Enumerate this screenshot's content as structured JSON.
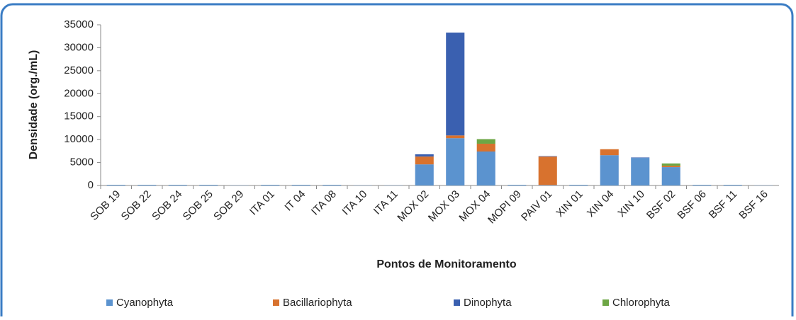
{
  "chart_data": {
    "type": "stacked_bar",
    "x_label": "Pontos de Monitoramento",
    "y_label": "Densidade (org./mL)",
    "categories": [
      "SOB 19",
      "SOB 22",
      "SOB 24",
      "SOB 25",
      "SOB 29",
      "ITA 01",
      "IT 04",
      "ITA 08",
      "ITA 10",
      "ITA 11",
      "MOX 02",
      "MOX 03",
      "MOX 04",
      "MOPI 09",
      "PAIV 01",
      "XIN 01",
      "XIN 04",
      "XIN 10",
      "BSF 02",
      "BSF 06",
      "BSF 11",
      "BSF 16"
    ],
    "series": [
      {
        "name": "Cyanophyta",
        "color": "#5b93cf",
        "values": [
          150,
          150,
          150,
          150,
          50,
          150,
          150,
          150,
          50,
          50,
          4600,
          10300,
          7400,
          150,
          100,
          150,
          6600,
          6000,
          4000,
          150,
          150,
          50
        ]
      },
      {
        "name": "Bacillariophyta",
        "color": "#d8722e",
        "values": [
          0,
          0,
          0,
          0,
          0,
          0,
          0,
          0,
          0,
          0,
          1700,
          600,
          1700,
          0,
          6200,
          0,
          1300,
          0,
          300,
          0,
          0,
          0
        ]
      },
      {
        "name": "Dinophyta",
        "color": "#3a60b0",
        "values": [
          0,
          0,
          0,
          0,
          0,
          0,
          0,
          0,
          0,
          0,
          500,
          22400,
          0,
          0,
          100,
          0,
          0,
          100,
          0,
          0,
          0,
          0
        ]
      },
      {
        "name": "Chlorophyta",
        "color": "#6da645",
        "values": [
          0,
          0,
          0,
          0,
          0,
          0,
          0,
          0,
          0,
          0,
          0,
          0,
          1000,
          0,
          0,
          0,
          0,
          0,
          500,
          0,
          0,
          0
        ]
      }
    ],
    "ylim": [
      0,
      35000
    ],
    "yticks": [
      0,
      5000,
      10000,
      15000,
      20000,
      25000,
      30000,
      35000
    ],
    "legend": "bottom"
  }
}
